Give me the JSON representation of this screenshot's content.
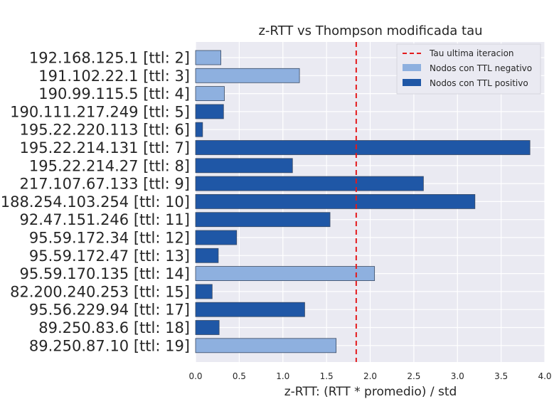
{
  "chart_data": {
    "type": "bar",
    "orientation": "horizontal",
    "title": "z-RTT vs Thompson modificada tau",
    "xlabel": "z-RTT: (RTT * promedio) / std",
    "ylabel": "",
    "xlim": [
      0,
      4.0
    ],
    "xticks": [
      "0.0",
      "0.5",
      "1.0",
      "1.5",
      "2.0",
      "2.5",
      "3.0",
      "3.5",
      "4.0"
    ],
    "grid": true,
    "legend_position": "top-right",
    "categories": [
      "192.168.125.1 [ttl: 2]",
      "191.102.22.1 [ttl: 3]",
      "190.99.115.5 [ttl: 4]",
      "190.111.217.249 [ttl: 5]",
      "195.22.220.113 [ttl: 6]",
      "195.22.214.131 [ttl: 7]",
      "195.22.214.27 [ttl: 8]",
      "217.107.67.133 [ttl: 9]",
      "188.254.103.254 [ttl: 10]",
      "92.47.151.246 [ttl: 11]",
      "95.59.172.34 [ttl: 12]",
      "95.59.172.47 [ttl: 13]",
      "95.59.170.135 [ttl: 14]",
      "82.200.240.253 [ttl: 15]",
      "95.56.229.94 [ttl: 17]",
      "89.250.83.6 [ttl: 18]",
      "89.250.87.10 [ttl: 19]"
    ],
    "values": [
      0.29,
      1.19,
      0.33,
      0.32,
      0.08,
      3.83,
      1.11,
      2.61,
      3.2,
      1.54,
      0.47,
      0.26,
      2.05,
      0.19,
      1.25,
      0.27,
      1.61
    ],
    "groups": [
      "neg",
      "neg",
      "neg",
      "pos",
      "pos",
      "pos",
      "pos",
      "pos",
      "pos",
      "pos",
      "pos",
      "pos",
      "neg",
      "pos",
      "pos",
      "pos",
      "neg"
    ],
    "tau": 1.84,
    "legend": [
      {
        "key": "tau",
        "label": "Tau ultima iteracion",
        "color": "#e31a1c"
      },
      {
        "key": "neg",
        "label": "Nodos con TTL negativo",
        "color": "#8eb0df"
      },
      {
        "key": "pos",
        "label": "Nodos con TTL positivo",
        "color": "#1f57a6"
      }
    ]
  }
}
